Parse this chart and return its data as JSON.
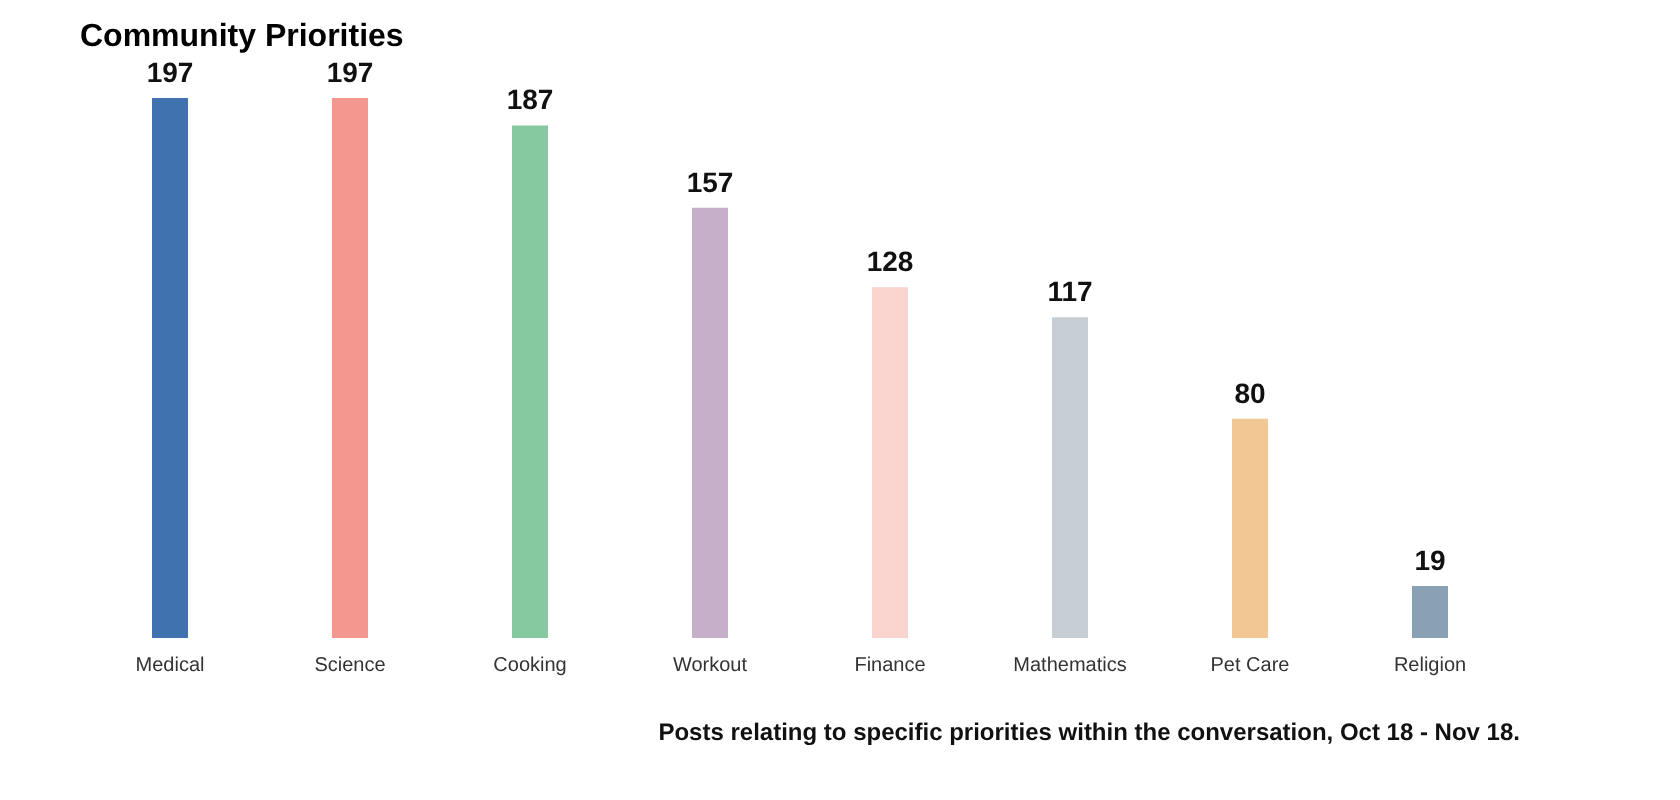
{
  "chart_data": {
    "type": "bar",
    "title": "Community Priorities",
    "categories": [
      "Medical",
      "Science",
      "Cooking",
      "Workout",
      "Finance",
      "Mathematics",
      "Pet Care",
      "Religion"
    ],
    "values": [
      197,
      197,
      187,
      157,
      128,
      117,
      80,
      19
    ],
    "colors": [
      "#3f72af",
      "#f4978e",
      "#86c9a0",
      "#c5afc9",
      "#f9d3cd",
      "#c6ced3",
      "#f2c794",
      "#8aa0b3"
    ],
    "ylim": [
      0,
      197
    ],
    "data_labels": true,
    "grid": false,
    "annotations": [
      "Posts relating to specific priorities within the conversation, Oct 18 - Nov 18."
    ]
  }
}
